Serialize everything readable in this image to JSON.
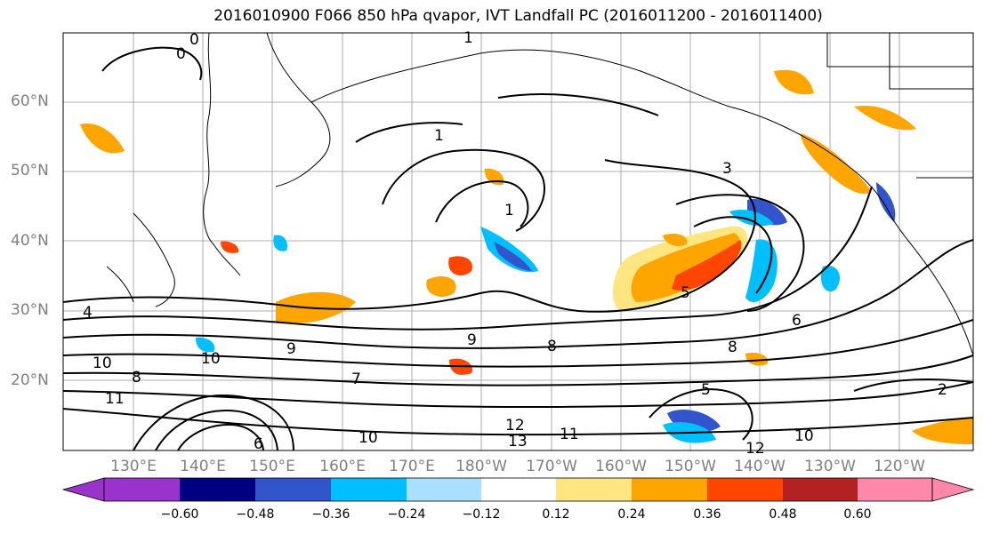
{
  "title": "2016010900 F066 850 hPa qvapor, IVT Landfall PC (2016011200 - 2016011400)",
  "lat_labels": [
    "60°N",
    "50°N",
    "40°N",
    "30°N",
    "20°N"
  ],
  "lon_labels": [
    "130°E",
    "140°E",
    "150°E",
    "160°E",
    "170°E",
    "180°W",
    "170°W",
    "160°W",
    "150°W",
    "140°W",
    "130°W",
    "120°W"
  ],
  "colorbar": {
    "colors": [
      "#9933cc",
      "#000080",
      "#3355cc",
      "#00bfff",
      "#aadfff",
      "#ffffff",
      "#ffe680",
      "#ffa500",
      "#ff4500",
      "#b22222",
      "#ff88aa"
    ],
    "ticks": [
      "−0.60",
      "−0.48",
      "−0.36",
      "−0.24",
      "−0.12",
      "0.12",
      "0.24",
      "0.36",
      "0.48",
      "0.60"
    ]
  },
  "contour_labels": [
    "0",
    "0",
    "1",
    "1",
    "1",
    "3",
    "4",
    "5",
    "6",
    "6",
    "7",
    "8",
    "8",
    "8",
    "9",
    "9",
    "10",
    "10",
    "10",
    "10",
    "11",
    "11",
    "12",
    "12",
    "13",
    "5",
    "2"
  ]
}
